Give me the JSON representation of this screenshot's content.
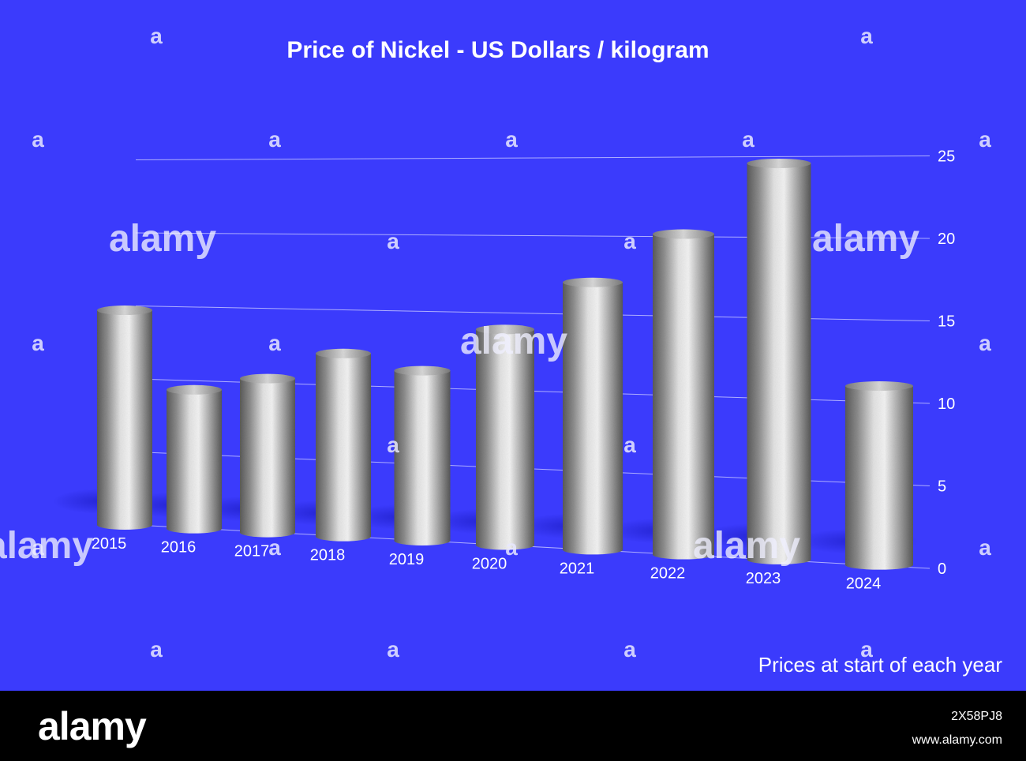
{
  "chart_data": {
    "type": "bar",
    "title": "Price of Nickel - US Dollars / kilogram",
    "categories": [
      "2015",
      "2016",
      "2017",
      "2018",
      "2019",
      "2020",
      "2021",
      "2022",
      "2023",
      "2024"
    ],
    "values": [
      14.7,
      9.4,
      10.3,
      12.1,
      11.1,
      13.9,
      17.0,
      20.1,
      24.5,
      10.9
    ],
    "ylim": [
      0,
      25
    ],
    "yticks": [
      "0",
      "5",
      "10",
      "15",
      "20",
      "25"
    ],
    "grid": true,
    "bar_style": "3d-cylinder",
    "bar_color": "#b8b8b8",
    "background_color": "#3b3bfc",
    "footnote": "Prices at start of each year"
  },
  "watermark": {
    "word": "alamy",
    "glyph": "a",
    "footer_logo": "alamy",
    "image_id": "2X58PJ8",
    "site": "www.alamy.com"
  }
}
